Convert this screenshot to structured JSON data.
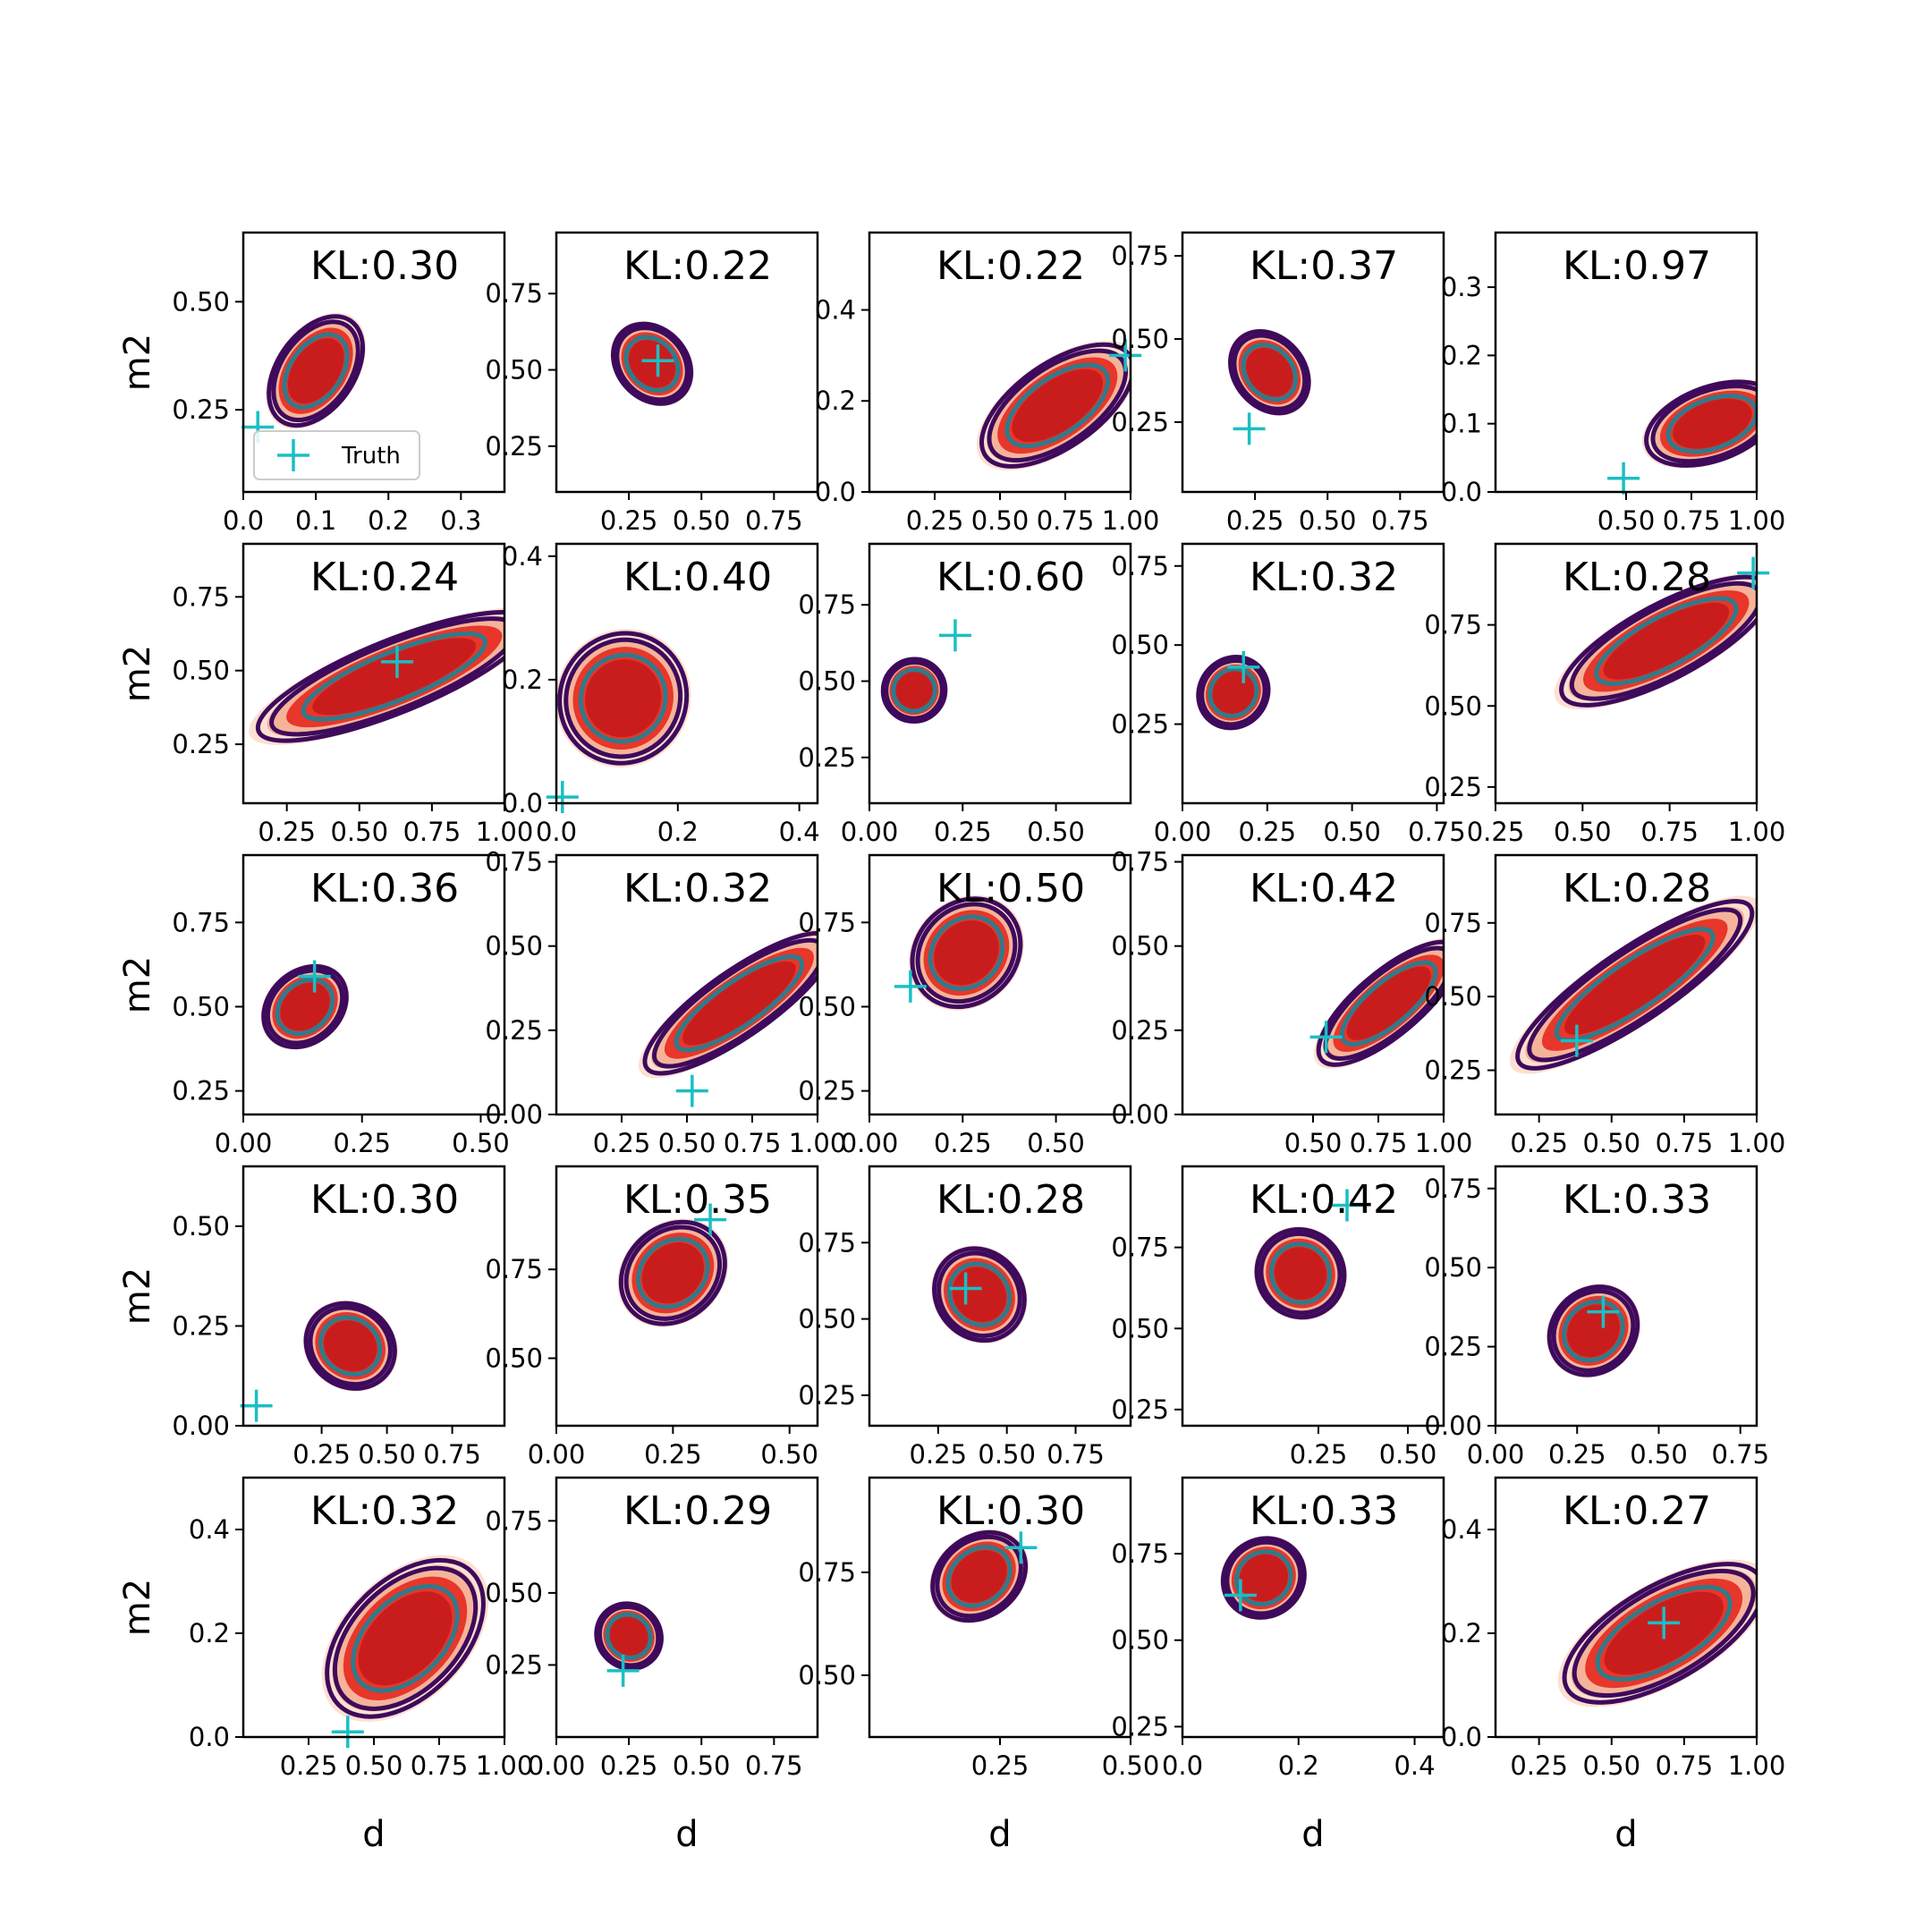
{
  "chart_data": {
    "type": "contour",
    "layout": "5x5 grid of panels",
    "xlabel": "d",
    "ylabel": "m2",
    "legend": {
      "entry": "Truth",
      "panel": 0,
      "placement": "lower-left"
    },
    "colors": {
      "fill_outer": "#fde0d2",
      "fill_mid": "#f5b49a",
      "fill_inner": "#e8362a",
      "fill_core": "#c91d1d",
      "contour_outer": "#3e0a5c",
      "contour_inner": "#2e7b8c",
      "truth": "#1abfc4"
    },
    "panels": [
      {
        "kl": "KL:0.30",
        "xlim": [
          0,
          0.36
        ],
        "ylim": [
          0.06,
          0.66
        ],
        "xticks": [
          0.0,
          0.1,
          0.2,
          0.3
        ],
        "xtick_labels": [
          "0.0",
          "0.1",
          "0.2",
          "0.3"
        ],
        "yticks": [
          0.25,
          0.5
        ],
        "ytick_labels": [
          "0.25",
          "0.50"
        ],
        "truth": [
          0.02,
          0.21
        ],
        "center": [
          0.1,
          0.34
        ],
        "halfwidth": 0.07,
        "halfheight": 0.19,
        "angle": 55
      },
      {
        "kl": "KL:0.22",
        "xlim": [
          0,
          0.9
        ],
        "ylim": [
          0.1,
          0.95
        ],
        "xticks": [
          0.25,
          0.5,
          0.75
        ],
        "xtick_labels": [
          "0.25",
          "0.50",
          "0.75"
        ],
        "yticks": [
          0.25,
          0.5,
          0.75
        ],
        "ytick_labels": [
          "0.25",
          "0.50",
          "0.75"
        ],
        "truth": [
          0.35,
          0.53
        ],
        "center": [
          0.33,
          0.52
        ],
        "halfwidth": 0.1,
        "halfheight": 0.35,
        "angle": 42
      },
      {
        "kl": "KL:0.22",
        "xlim": [
          0,
          1
        ],
        "ylim": [
          0,
          0.57
        ],
        "xticks": [
          0.25,
          0.5,
          0.75,
          1.0
        ],
        "xtick_labels": [
          "0.25",
          "0.50",
          "0.75",
          "1.00"
        ],
        "yticks": [
          0,
          0.2,
          0.4
        ],
        "ytick_labels": [
          "0.0",
          "0.2",
          "0.4"
        ],
        "truth": [
          0.98,
          0.3
        ],
        "center": [
          0.72,
          0.19
        ],
        "halfwidth": 0.28,
        "halfheight": 0.18,
        "angle": 35
      },
      {
        "kl": "KL:0.37",
        "xlim": [
          0,
          0.9
        ],
        "ylim": [
          0.04,
          0.82
        ],
        "xticks": [
          0.25,
          0.5,
          0.75
        ],
        "xtick_labels": [
          "0.25",
          "0.50",
          "0.75"
        ],
        "yticks": [
          0.25,
          0.5,
          0.75
        ],
        "ytick_labels": [
          "0.25",
          "0.50",
          "0.75"
        ],
        "truth": [
          0.23,
          0.23
        ],
        "center": [
          0.3,
          0.4
        ],
        "halfwidth": 0.1,
        "halfheight": 0.33,
        "angle": 40
      },
      {
        "kl": "KL:0.97",
        "xlim": [
          0,
          1
        ],
        "ylim": [
          0,
          0.38
        ],
        "xticks": [
          0.5,
          0.75,
          1.0
        ],
        "xtick_labels": [
          "0.50",
          "0.75",
          "1.00"
        ],
        "yticks": [
          0,
          0.1,
          0.2,
          0.3
        ],
        "ytick_labels": [
          "0.0",
          "0.1",
          "0.2",
          "0.3"
        ],
        "truth": [
          0.49,
          0.02
        ],
        "center": [
          0.83,
          0.1
        ],
        "halfwidth": 0.22,
        "halfheight": 0.11,
        "angle": 20
      },
      {
        "kl": "KL:0.24",
        "xlim": [
          0.1,
          1.0
        ],
        "ylim": [
          0.05,
          0.93
        ],
        "xticks": [
          0.25,
          0.5,
          0.75,
          1.0
        ],
        "xtick_labels": [
          "0.25",
          "0.50",
          "0.75",
          "1.00"
        ],
        "yticks": [
          0.25,
          0.5,
          0.75
        ],
        "ytick_labels": [
          "0.25",
          "0.50",
          "0.75"
        ],
        "truth": [
          0.63,
          0.53
        ],
        "center": [
          0.62,
          0.48
        ],
        "halfwidth": 0.42,
        "halfheight": 0.15,
        "angle": 22
      },
      {
        "kl": "KL:0.40",
        "xlim": [
          0,
          0.43
        ],
        "ylim": [
          0,
          0.42
        ],
        "xticks": [
          0,
          0.2,
          0.4
        ],
        "xtick_labels": [
          "0.0",
          "0.2",
          "0.4"
        ],
        "yticks": [
          0,
          0.2,
          0.4
        ],
        "ytick_labels": [
          "0.0",
          "0.2",
          "0.4"
        ],
        "truth": [
          0.01,
          0.01
        ],
        "center": [
          0.11,
          0.17
        ],
        "halfwidth": 0.09,
        "halfheight": 0.24,
        "angle": 60
      },
      {
        "kl": "KL:0.60",
        "xlim": [
          0,
          0.7
        ],
        "ylim": [
          0.1,
          0.95
        ],
        "xticks": [
          0,
          0.25,
          0.5
        ],
        "xtick_labels": [
          "0.00",
          "0.25",
          "0.50"
        ],
        "yticks": [
          0.25,
          0.5,
          0.75
        ],
        "ytick_labels": [
          "0.25",
          "0.50",
          "0.75"
        ],
        "truth": [
          0.23,
          0.65
        ],
        "center": [
          0.12,
          0.47
        ],
        "halfwidth": 0.07,
        "halfheight": 0.24,
        "angle": 45
      },
      {
        "kl": "KL:0.32",
        "xlim": [
          0,
          0.77
        ],
        "ylim": [
          0,
          0.82
        ],
        "xticks": [
          0,
          0.25,
          0.5,
          0.75
        ],
        "xtick_labels": [
          "0.00",
          "0.25",
          "0.50",
          "0.75"
        ],
        "yticks": [
          0.25,
          0.5,
          0.75
        ],
        "ytick_labels": [
          "0.25",
          "0.50",
          "0.75"
        ],
        "truth": [
          0.18,
          0.43
        ],
        "center": [
          0.15,
          0.35
        ],
        "halfwidth": 0.09,
        "halfheight": 0.25,
        "angle": 50
      },
      {
        "kl": "KL:0.28",
        "xlim": [
          0.25,
          1.0
        ],
        "ylim": [
          0.2,
          1.0
        ],
        "xticks": [
          0.25,
          0.5,
          0.75,
          1.0
        ],
        "xtick_labels": [
          "0.25",
          "0.50",
          "0.75",
          "1.00"
        ],
        "yticks": [
          0.25,
          0.5,
          0.75
        ],
        "ytick_labels": [
          "0.25",
          "0.50",
          "0.75"
        ],
        "truth": [
          0.99,
          0.91
        ],
        "center": [
          0.74,
          0.7
        ],
        "halfwidth": 0.28,
        "halfheight": 0.18,
        "angle": 28
      },
      {
        "kl": "KL:0.36",
        "xlim": [
          0,
          0.55
        ],
        "ylim": [
          0.18,
          0.95
        ],
        "xticks": [
          0,
          0.25,
          0.5
        ],
        "xtick_labels": [
          "0.00",
          "0.25",
          "0.50"
        ],
        "yticks": [
          0.25,
          0.5,
          0.75
        ],
        "ytick_labels": [
          "0.25",
          "0.50",
          "0.75"
        ],
        "truth": [
          0.15,
          0.59
        ],
        "center": [
          0.13,
          0.5
        ],
        "halfwidth": 0.08,
        "halfheight": 0.24,
        "angle": 42
      },
      {
        "kl": "KL:0.32",
        "xlim": [
          0,
          1
        ],
        "ylim": [
          0,
          0.77
        ],
        "xticks": [
          0.25,
          0.5,
          0.75,
          1.0
        ],
        "xtick_labels": [
          "0.25",
          "0.50",
          "0.75",
          "1.00"
        ],
        "yticks": [
          0,
          0.25,
          0.5,
          0.75
        ],
        "ytick_labels": [
          "0.00",
          "0.25",
          "0.50",
          "0.75"
        ],
        "truth": [
          0.52,
          0.07
        ],
        "center": [
          0.7,
          0.33
        ],
        "halfwidth": 0.36,
        "halfheight": 0.14,
        "angle": 35
      },
      {
        "kl": "KL:0.50",
        "xlim": [
          0,
          0.7
        ],
        "ylim": [
          0.18,
          0.95
        ],
        "xticks": [
          0,
          0.25,
          0.5
        ],
        "xtick_labels": [
          "0.00",
          "0.25",
          "0.50"
        ],
        "yticks": [
          0.25,
          0.5,
          0.75
        ],
        "ytick_labels": [
          "0.25",
          "0.50",
          "0.75"
        ],
        "truth": [
          0.11,
          0.56
        ],
        "center": [
          0.26,
          0.66
        ],
        "halfwidth": 0.13,
        "halfheight": 0.34,
        "angle": 45
      },
      {
        "kl": "KL:0.42",
        "xlim": [
          0,
          1
        ],
        "ylim": [
          0,
          0.77
        ],
        "xticks": [
          0.5,
          0.75,
          1.0
        ],
        "xtick_labels": [
          "0.50",
          "0.75",
          "1.00"
        ],
        "yticks": [
          0,
          0.25,
          0.5,
          0.75
        ],
        "ytick_labels": [
          "0.00",
          "0.25",
          "0.50",
          "0.75"
        ],
        "truth": [
          0.55,
          0.23
        ],
        "center": [
          0.79,
          0.33
        ],
        "halfwidth": 0.28,
        "halfheight": 0.16,
        "angle": 40
      },
      {
        "kl": "KL:0.28",
        "xlim": [
          0.1,
          1.0
        ],
        "ylim": [
          0.1,
          0.98
        ],
        "xticks": [
          0.25,
          0.5,
          0.75,
          1.0
        ],
        "xtick_labels": [
          "0.25",
          "0.50",
          "0.75",
          "1.00"
        ],
        "yticks": [
          0.25,
          0.5,
          0.75
        ],
        "ytick_labels": [
          "0.25",
          "0.50",
          "0.75"
        ],
        "truth": [
          0.38,
          0.35
        ],
        "center": [
          0.58,
          0.54
        ],
        "halfwidth": 0.4,
        "halfheight": 0.16,
        "angle": 34
      },
      {
        "kl": "KL:0.30",
        "xlim": [
          -0.05,
          0.95
        ],
        "ylim": [
          0,
          0.65
        ],
        "xticks": [
          0.25,
          0.5,
          0.75
        ],
        "xtick_labels": [
          "0.25",
          "0.50",
          "0.75"
        ],
        "yticks": [
          0,
          0.25,
          0.5
        ],
        "ytick_labels": [
          "0.00",
          "0.25",
          "0.50"
        ],
        "truth": [
          0.0,
          0.05
        ],
        "center": [
          0.36,
          0.2
        ],
        "halfwidth": 0.13,
        "halfheight": 0.28,
        "angle": 55
      },
      {
        "kl": "KL:0.35",
        "xlim": [
          0,
          0.56
        ],
        "ylim": [
          0.31,
          1.04
        ],
        "xticks": [
          0,
          0.25,
          0.5
        ],
        "xtick_labels": [
          "0.00",
          "0.25",
          "0.50"
        ],
        "yticks": [
          0.5,
          0.75
        ],
        "ytick_labels": [
          "0.50",
          "0.75"
        ],
        "truth": [
          0.33,
          0.89
        ],
        "center": [
          0.25,
          0.74
        ],
        "halfwidth": 0.1,
        "halfheight": 0.3,
        "angle": 42
      },
      {
        "kl": "KL:0.28",
        "xlim": [
          0,
          0.95
        ],
        "ylim": [
          0.15,
          1.0
        ],
        "xticks": [
          0.25,
          0.5,
          0.75
        ],
        "xtick_labels": [
          "0.25",
          "0.50",
          "0.75"
        ],
        "yticks": [
          0.25,
          0.5,
          0.75
        ],
        "ytick_labels": [
          "0.25",
          "0.50",
          "0.75"
        ],
        "truth": [
          0.35,
          0.6
        ],
        "center": [
          0.4,
          0.58
        ],
        "halfwidth": 0.13,
        "halfheight": 0.38,
        "angle": 40
      },
      {
        "kl": "KL:0.42",
        "xlim": [
          -0.13,
          0.6
        ],
        "ylim": [
          0.2,
          1.0
        ],
        "xticks": [
          0.25,
          0.5
        ],
        "xtick_labels": [
          "0.25",
          "0.50"
        ],
        "yticks": [
          0.25,
          0.5,
          0.75
        ],
        "ytick_labels": [
          "0.25",
          "0.50",
          "0.75"
        ],
        "truth": [
          0.33,
          0.88
        ],
        "center": [
          0.2,
          0.67
        ],
        "halfwidth": 0.1,
        "halfheight": 0.33,
        "angle": 42
      },
      {
        "kl": "KL:0.33",
        "xlim": [
          0,
          0.8
        ],
        "ylim": [
          0,
          0.82
        ],
        "xticks": [
          0,
          0.25,
          0.5,
          0.75
        ],
        "xtick_labels": [
          "0.00",
          "0.25",
          "0.50",
          "0.75"
        ],
        "yticks": [
          0,
          0.25,
          0.5,
          0.75
        ],
        "ytick_labels": [
          "0.00",
          "0.25",
          "0.50",
          "0.75"
        ],
        "truth": [
          0.33,
          0.36
        ],
        "center": [
          0.3,
          0.3
        ],
        "halfwidth": 0.12,
        "halfheight": 0.3,
        "angle": 45
      },
      {
        "kl": "KL:0.32",
        "xlim": [
          0,
          1
        ],
        "ylim": [
          0,
          0.5
        ],
        "xticks": [
          0.25,
          0.5,
          0.75,
          1.0
        ],
        "xtick_labels": [
          "0.25",
          "0.50",
          "0.75",
          "1.00"
        ],
        "yticks": [
          0,
          0.2,
          0.4
        ],
        "ytick_labels": [
          "0.0",
          "0.2",
          "0.4"
        ],
        "truth": [
          0.4,
          0.01
        ],
        "center": [
          0.62,
          0.19
        ],
        "halfwidth": 0.3,
        "halfheight": 0.24,
        "angle": 45
      },
      {
        "kl": "KL:0.29",
        "xlim": [
          0,
          0.9
        ],
        "ylim": [
          0,
          0.9
        ],
        "xticks": [
          0,
          0.25,
          0.5,
          0.75
        ],
        "xtick_labels": [
          "0.00",
          "0.25",
          "0.50",
          "0.75"
        ],
        "yticks": [
          0.25,
          0.5,
          0.75
        ],
        "ytick_labels": [
          "0.25",
          "0.50",
          "0.75"
        ],
        "truth": [
          0.23,
          0.23
        ],
        "center": [
          0.25,
          0.35
        ],
        "halfwidth": 0.09,
        "halfheight": 0.28,
        "angle": 45
      },
      {
        "kl": "KL:0.30",
        "xlim": [
          0,
          0.5
        ],
        "ylim": [
          0.35,
          0.98
        ],
        "xticks": [
          0.25,
          0.5
        ],
        "xtick_labels": [
          "0.25",
          "0.50"
        ],
        "yticks": [
          0.5,
          0.75
        ],
        "ytick_labels": [
          "0.50",
          "0.75"
        ],
        "truth": [
          0.29,
          0.81
        ],
        "center": [
          0.21,
          0.74
        ],
        "halfwidth": 0.08,
        "halfheight": 0.22,
        "angle": 38
      },
      {
        "kl": "KL:0.33",
        "xlim": [
          0,
          0.45
        ],
        "ylim": [
          0.22,
          0.97
        ],
        "xticks": [
          0,
          0.2,
          0.4
        ],
        "xtick_labels": [
          "0.0",
          "0.2",
          "0.4"
        ],
        "yticks": [
          0.25,
          0.5,
          0.75
        ],
        "ytick_labels": [
          "0.25",
          "0.50",
          "0.75"
        ],
        "truth": [
          0.1,
          0.63
        ],
        "center": [
          0.14,
          0.68
        ],
        "halfwidth": 0.06,
        "halfheight": 0.26,
        "angle": 35
      },
      {
        "kl": "KL:0.27",
        "xlim": [
          0.1,
          1.0
        ],
        "ylim": [
          0,
          0.5
        ],
        "xticks": [
          0.25,
          0.5,
          0.75,
          1.0
        ],
        "xtick_labels": [
          "0.25",
          "0.50",
          "0.75",
          "1.00"
        ],
        "yticks": [
          0,
          0.2,
          0.4
        ],
        "ytick_labels": [
          "0.0",
          "0.2",
          "0.4"
        ],
        "truth": [
          0.68,
          0.22
        ],
        "center": [
          0.68,
          0.2
        ],
        "halfwidth": 0.32,
        "halfheight": 0.17,
        "angle": 30
      }
    ]
  }
}
